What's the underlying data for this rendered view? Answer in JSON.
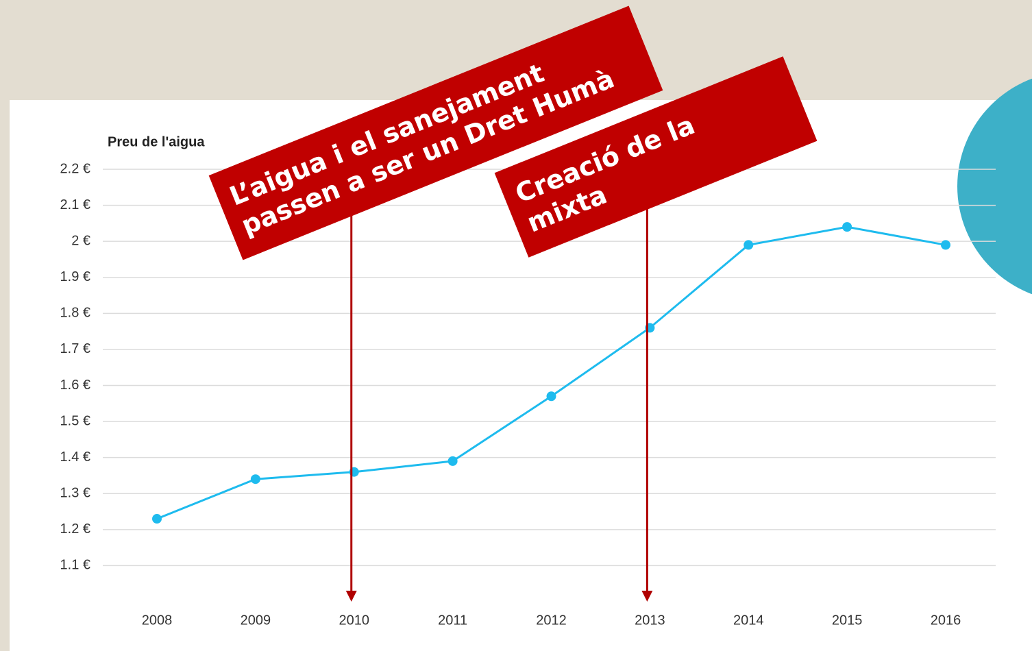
{
  "chart_data": {
    "type": "line",
    "title": "Preu de l'aigua",
    "categories": [
      "2008",
      "2009",
      "2010",
      "2011",
      "2012",
      "2013",
      "2014",
      "2015",
      "2016"
    ],
    "series": [
      {
        "name": "Preu de l'aigua",
        "color": "#1ebbee",
        "values": [
          1.23,
          1.34,
          1.36,
          1.39,
          1.57,
          1.76,
          1.99,
          2.04,
          1.99
        ]
      }
    ],
    "ylim": [
      1.0,
      2.2
    ],
    "yticks": [
      {
        "value": 1.1,
        "label": "1.1 €"
      },
      {
        "value": 1.2,
        "label": "1.2 €"
      },
      {
        "value": 1.3,
        "label": "1.3 €"
      },
      {
        "value": 1.4,
        "label": "1.4 €"
      },
      {
        "value": 1.5,
        "label": "1.5 €"
      },
      {
        "value": 1.6,
        "label": "1.6 €"
      },
      {
        "value": 1.7,
        "label": "1.7 €"
      },
      {
        "value": 1.8,
        "label": "1.8 €"
      },
      {
        "value": 1.9,
        "label": "1.9 €"
      },
      {
        "value": 2,
        "label": "2 €"
      },
      {
        "value": 2.1,
        "label": "2.1 €"
      },
      {
        "value": 2.2,
        "label": "2.2 €"
      }
    ],
    "grid": true,
    "annotations": [
      {
        "x": "2010",
        "lines": [
          "L’aigua i el sanejament",
          "passen a ser un Dret Humà"
        ]
      },
      {
        "x": "2013",
        "lines": [
          "Creació de la",
          "mixta"
        ]
      }
    ]
  }
}
